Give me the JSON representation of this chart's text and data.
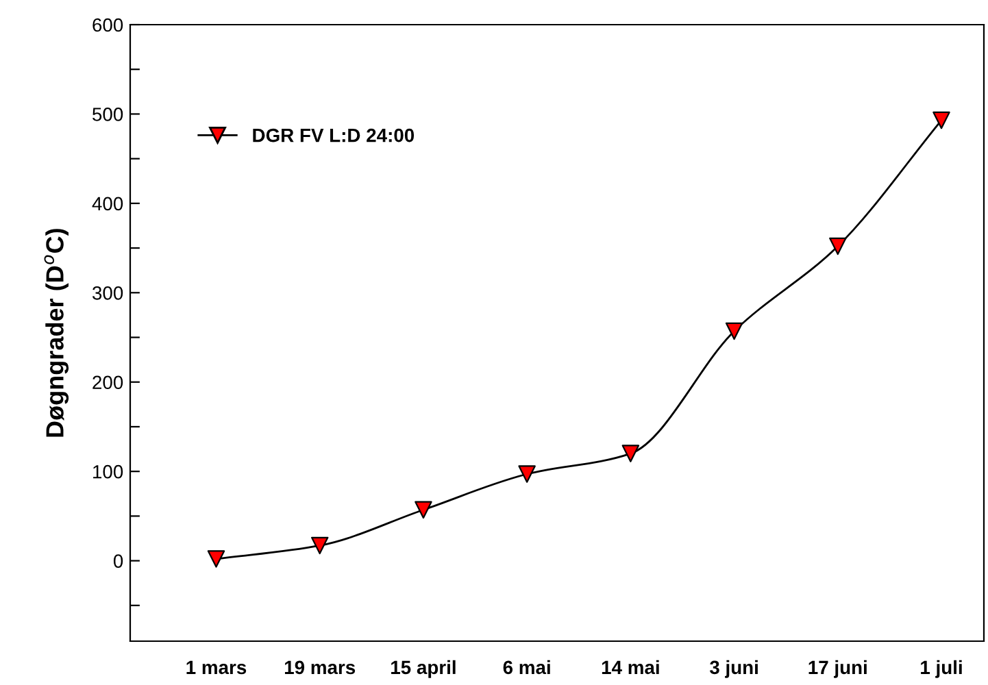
{
  "chart_data": {
    "type": "line",
    "ylabel": "Døgngrader (D$^{o}$C)",
    "categories": [
      "1 mars",
      "19 mars",
      "15 april",
      "6 mai",
      "14 mai",
      "3 juni",
      "17 juni",
      "1 juli"
    ],
    "series": [
      {
        "name": "DGR FV L:D 24:00",
        "color": "#ff0000",
        "values": [
          2,
          17,
          57,
          97,
          120,
          257,
          352,
          493
        ]
      }
    ],
    "ylim": [
      -90,
      600
    ],
    "yticks": [
      0,
      {
        "value": 50,
        "label": null
      },
      100,
      {
        "value": 150,
        "label": null
      },
      200,
      {
        "value": 250,
        "label": null
      },
      300,
      {
        "value": 350,
        "label": null
      },
      400,
      {
        "value": 450,
        "label": null
      },
      500,
      {
        "value": 550,
        "label": null
      },
      600,
      {
        "value": -50,
        "label": null
      }
    ],
    "marker": "triangle",
    "line_style": "solid",
    "grid": false,
    "legend": "top left"
  }
}
